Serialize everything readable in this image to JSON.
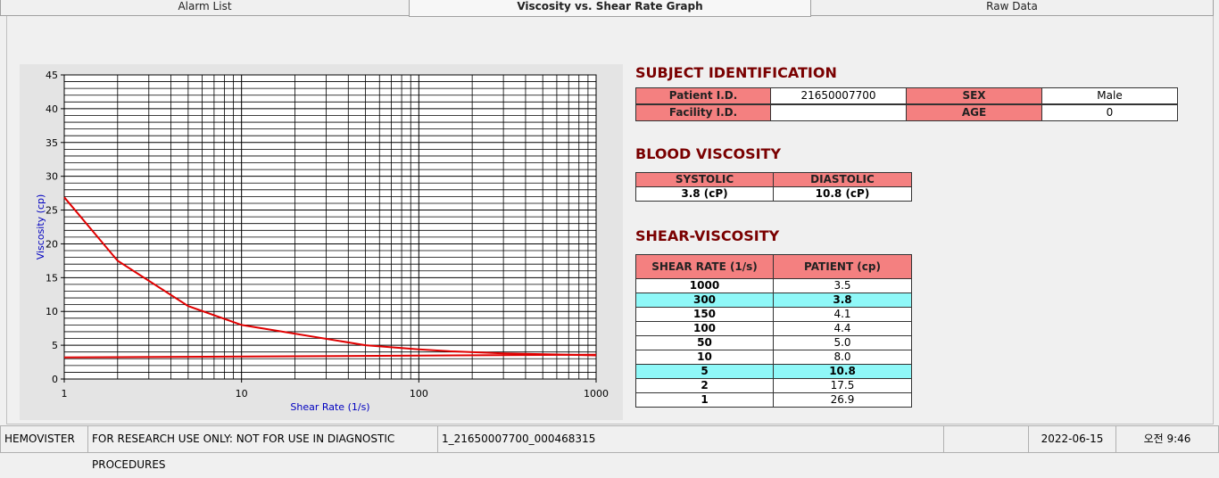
{
  "tabs": [
    "Alarm List",
    "Viscosity vs. Shear Rate Graph",
    "Raw Data"
  ],
  "active_tab": 1,
  "chart_data": {
    "type": "line",
    "x_label": "Shear Rate (1/s)",
    "y_label": "Viscosity (cp)",
    "series": [
      {
        "color": "#e00000",
        "x": [
          1,
          2,
          5,
          10,
          50,
          100,
          150,
          300,
          1000
        ],
        "values": [
          26.9,
          17.5,
          10.8,
          8.0,
          5.0,
          4.4,
          4.1,
          3.8,
          3.5
        ]
      },
      {
        "color": "#e00000",
        "x": [
          1,
          1000
        ],
        "values": [
          3.2,
          3.6
        ]
      }
    ],
    "xscale": "log",
    "xlim": [
      1,
      1000
    ],
    "xticks": [
      1,
      10,
      100,
      1000
    ],
    "ylim": [
      0,
      45
    ],
    "yticks": [
      0,
      5,
      10,
      15,
      20,
      25,
      30,
      35,
      40,
      45
    ],
    "grid": true
  },
  "subject": {
    "title": "SUBJECT IDENTIFICATION",
    "patient_id_label": "Patient I.D.",
    "patient_id": "21650007700",
    "sex_label": "SEX",
    "sex": "Male",
    "facility_id_label": "Facility I.D.",
    "age_label": "AGE",
    "age": "0"
  },
  "blood_viscosity": {
    "title": "BLOOD VISCOSITY",
    "headers": [
      "SYSTOLIC",
      "DIASTOLIC"
    ],
    "values": [
      "3.8 (cP)",
      "10.8 (cP)"
    ]
  },
  "shear_viscosity": {
    "title": "SHEAR-VISCOSITY",
    "headers": [
      "SHEAR RATE (1/s)",
      "PATIENT (cp)"
    ],
    "rows": [
      [
        "1000",
        "3.5"
      ],
      [
        "300",
        "3.8"
      ],
      [
        "150",
        "4.1"
      ],
      [
        "100",
        "4.4"
      ],
      [
        "50",
        "5.0"
      ],
      [
        "10",
        "8.0"
      ],
      [
        "5",
        "10.8"
      ],
      [
        "2",
        "17.5"
      ],
      [
        "1",
        "26.9"
      ]
    ],
    "highlight_rows": [
      1,
      6
    ]
  },
  "status_bar": [
    "HEMOVISTER",
    "FOR RESEARCH USE ONLY: NOT FOR USE IN DIAGNOSTIC PROCEDURES",
    "1_21650007700_000468315",
    "2022-06-15",
    "오전 9:46"
  ]
}
